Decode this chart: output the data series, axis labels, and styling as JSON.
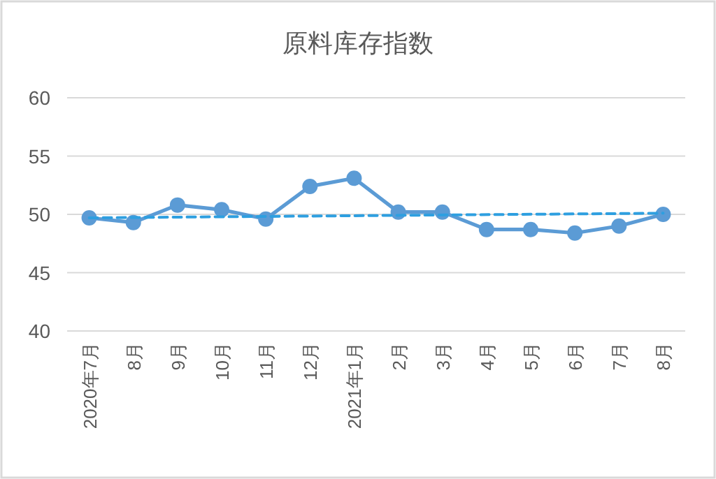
{
  "chart_data": {
    "type": "line",
    "title": "原料库存指数",
    "categories": [
      "2020年7月",
      "8月",
      "9月",
      "10月",
      "11月",
      "12月",
      "2021年1月",
      "2月",
      "3月",
      "4月",
      "5月",
      "6月",
      "7月",
      "8月"
    ],
    "series": [
      {
        "color": "#5b9bd5",
        "marker": "circle",
        "values": [
          49.7,
          49.3,
          50.8,
          50.4,
          49.6,
          52.4,
          53.1,
          50.2,
          50.2,
          48.7,
          48.7,
          48.4,
          49.0,
          50.0
        ]
      },
      {
        "type": "line",
        "color": "#2e9fe0",
        "line_style": "dashed",
        "marker": "none",
        "values": [
          49.7,
          null,
          null,
          null,
          null,
          null,
          null,
          null,
          null,
          null,
          null,
          null,
          null,
          50.1
        ]
      }
    ],
    "ylim": [
      40,
      60
    ],
    "yticks": [
      40,
      45,
      50,
      55,
      60
    ],
    "grid": "y"
  }
}
